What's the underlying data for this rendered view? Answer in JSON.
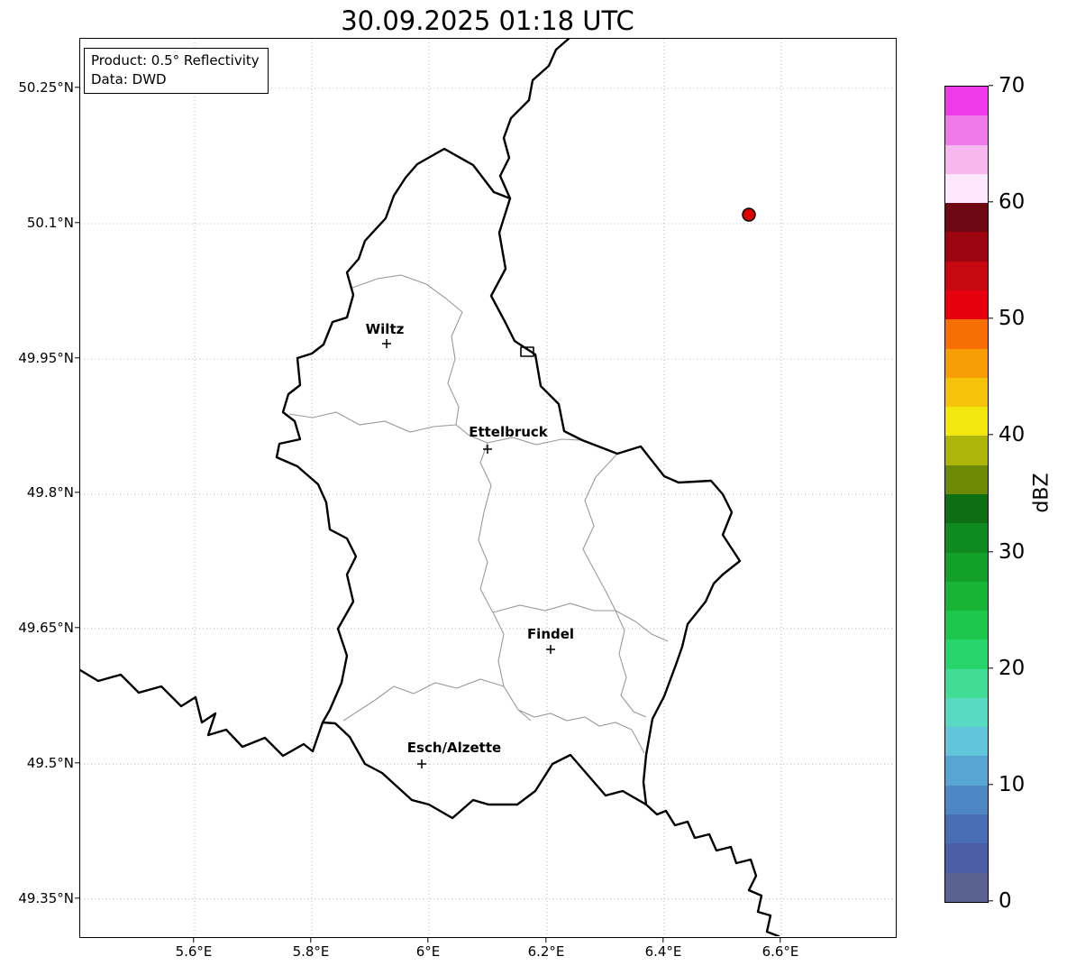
{
  "title": "30.09.2025 01:18 UTC",
  "info_box": {
    "line1": "Product: 0.5° Reflectivity",
    "line2": "Data: DWD"
  },
  "map": {
    "cities": [
      {
        "name": "Wiltz"
      },
      {
        "name": "Ettelbruck"
      },
      {
        "name": "Findel"
      },
      {
        "name": "Esch/Alzette"
      }
    ]
  },
  "echo_point": {
    "color": "#dd0000",
    "approx_lon_deg": 6.55,
    "approx_lat_deg": 50.11
  },
  "axes": {
    "x_ticks": [
      "5.6°E",
      "5.8°E",
      "6°E",
      "6.2°E",
      "6.4°E",
      "6.6°E"
    ],
    "y_ticks": [
      "50.25°N",
      "50.1°N",
      "49.95°N",
      "49.8°N",
      "49.65°N",
      "49.5°N",
      "49.35°N"
    ]
  },
  "colorbar": {
    "label": "dBZ",
    "unit": "dBZ",
    "range": [
      0,
      70
    ],
    "ticks": [
      "70",
      "60",
      "50",
      "40",
      "30",
      "20",
      "10",
      "0"
    ],
    "colors_top_to_bottom": [
      "#ee3ae8",
      "#f07ae8",
      "#f7b8f0",
      "#fce8fa",
      "#6e0812",
      "#9c040f",
      "#c80810",
      "#e6000e",
      "#f76e04",
      "#f79d06",
      "#f5c40a",
      "#f2e70e",
      "#aeb509",
      "#6d8a06",
      "#0e6e14",
      "#0f8a20",
      "#12a029",
      "#17b435",
      "#1dc74b",
      "#28d46c",
      "#41dc96",
      "#58d9c2",
      "#61c6da",
      "#57a6d2",
      "#4e88c4",
      "#4a6eb6",
      "#4c5ea6",
      "#596290"
    ]
  }
}
